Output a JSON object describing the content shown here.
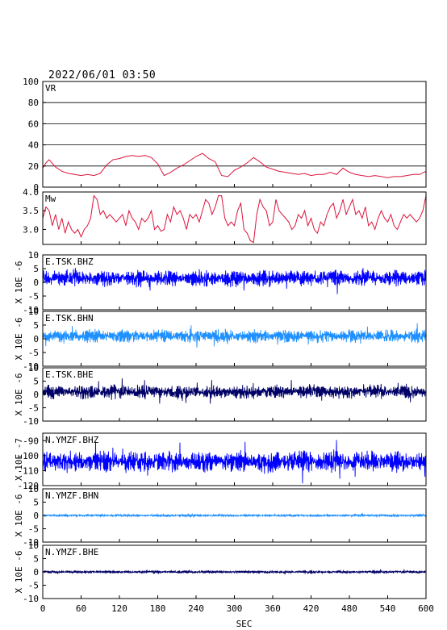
{
  "title": "2022/06/01 03:50",
  "chart_data": {
    "type": "line",
    "xlabel": "SEC",
    "xlim": [
      0,
      600
    ],
    "xticks": [
      0,
      60,
      120,
      180,
      240,
      300,
      360,
      420,
      480,
      540,
      600
    ],
    "panels": [
      {
        "id": "vr",
        "label": "VR",
        "color": "#dc143c",
        "ylim": [
          0,
          100
        ],
        "yticks": [
          "0",
          "20",
          "40",
          "60",
          "80",
          "100"
        ],
        "ytick_values": [
          0,
          20,
          40,
          60,
          80,
          100
        ],
        "grid": true,
        "ylabel": "",
        "x": [
          0,
          5,
          10,
          20,
          30,
          40,
          50,
          60,
          70,
          80,
          90,
          100,
          110,
          120,
          130,
          140,
          150,
          160,
          170,
          180,
          190,
          200,
          210,
          220,
          230,
          240,
          250,
          260,
          270,
          280,
          290,
          300,
          310,
          320,
          330,
          340,
          350,
          360,
          370,
          380,
          390,
          400,
          410,
          420,
          430,
          440,
          450,
          460,
          470,
          480,
          490,
          500,
          510,
          520,
          530,
          540,
          550,
          560,
          570,
          580,
          590,
          600
        ],
        "values": [
          18,
          23,
          26,
          19,
          15,
          13,
          12,
          11,
          12,
          11,
          13,
          21,
          26,
          27,
          29,
          30,
          29,
          30,
          28,
          22,
          11,
          14,
          18,
          21,
          25,
          29,
          32,
          27,
          24,
          11,
          10,
          16,
          19,
          23,
          28,
          24,
          19,
          17,
          15,
          14,
          13,
          12,
          13,
          11,
          12,
          12,
          14,
          12,
          18,
          14,
          12,
          11,
          10,
          11,
          10,
          9,
          10,
          10,
          11,
          12,
          12,
          15
        ]
      },
      {
        "id": "mw",
        "label": "Mw",
        "color": "#dc143c",
        "ylim": [
          2.6,
          4.0
        ],
        "yticks": [
          "3.0",
          "3.5",
          "4.0"
        ],
        "ytick_values": [
          3.0,
          3.5,
          4.0
        ],
        "grid": false,
        "ylabel": "",
        "x": [
          0,
          5,
          10,
          15,
          20,
          25,
          30,
          35,
          40,
          45,
          50,
          55,
          60,
          65,
          70,
          75,
          80,
          85,
          90,
          95,
          100,
          105,
          110,
          115,
          120,
          125,
          130,
          135,
          140,
          145,
          150,
          155,
          160,
          165,
          170,
          175,
          180,
          185,
          190,
          195,
          200,
          205,
          210,
          215,
          220,
          225,
          230,
          235,
          240,
          245,
          250,
          255,
          260,
          265,
          270,
          275,
          280,
          285,
          290,
          295,
          300,
          305,
          310,
          315,
          320,
          325,
          330,
          335,
          340,
          345,
          350,
          355,
          360,
          365,
          370,
          375,
          380,
          385,
          390,
          395,
          400,
          405,
          410,
          415,
          420,
          425,
          430,
          435,
          440,
          445,
          450,
          455,
          460,
          465,
          470,
          475,
          480,
          485,
          490,
          495,
          500,
          505,
          510,
          515,
          520,
          525,
          530,
          535,
          540,
          545,
          550,
          555,
          560,
          565,
          570,
          575,
          580,
          585,
          590,
          595,
          600
        ],
        "values": [
          3.3,
          3.6,
          3.5,
          3.1,
          3.4,
          3.0,
          3.3,
          2.9,
          3.2,
          3.0,
          2.9,
          3.0,
          2.8,
          3.0,
          3.1,
          3.3,
          3.9,
          3.8,
          3.4,
          3.5,
          3.3,
          3.4,
          3.3,
          3.2,
          3.3,
          3.4,
          3.1,
          3.5,
          3.3,
          3.2,
          3.0,
          3.3,
          3.2,
          3.3,
          3.5,
          3.0,
          3.1,
          2.95,
          3.0,
          3.4,
          3.2,
          3.6,
          3.4,
          3.5,
          3.3,
          3.0,
          3.4,
          3.3,
          3.4,
          3.2,
          3.5,
          3.8,
          3.7,
          3.4,
          3.6,
          3.9,
          3.9,
          3.3,
          3.1,
          3.2,
          3.1,
          3.5,
          3.7,
          3.0,
          2.9,
          2.7,
          2.65,
          3.4,
          3.8,
          3.6,
          3.5,
          3.1,
          3.2,
          3.8,
          3.5,
          3.4,
          3.3,
          3.2,
          3.0,
          3.1,
          3.4,
          3.3,
          3.5,
          3.1,
          3.3,
          3.0,
          2.9,
          3.2,
          3.1,
          3.4,
          3.6,
          3.7,
          3.3,
          3.5,
          3.8,
          3.4,
          3.6,
          3.8,
          3.4,
          3.5,
          3.3,
          3.6,
          3.1,
          3.2,
          3.0,
          3.3,
          3.5,
          3.3,
          3.2,
          3.4,
          3.1,
          3.0,
          3.2,
          3.4,
          3.3,
          3.4,
          3.3,
          3.2,
          3.3,
          3.5,
          3.9
        ]
      },
      {
        "id": "tsk-bhz",
        "label": "E.TSK.BHZ",
        "color": "#0000ff",
        "ylim": [
          -10,
          10
        ],
        "yticks": [
          "-10",
          "-5",
          "0",
          "5",
          "10"
        ],
        "ytick_values": [
          -10,
          -5,
          0,
          5,
          10
        ],
        "grid": false,
        "ylabel": "X 10E -6",
        "baseline": 1.5,
        "amplitude": 2.5
      },
      {
        "id": "tsk-bhn",
        "label": "E.TSK.BHN",
        "color": "#1e90ff",
        "ylim": [
          -10,
          10
        ],
        "yticks": [
          "-10",
          "-5",
          "0",
          "5",
          "10"
        ],
        "ytick_values": [
          -10,
          -5,
          0,
          5,
          10
        ],
        "grid": false,
        "ylabel": "X 10E -6",
        "baseline": 1.0,
        "amplitude": 2.0
      },
      {
        "id": "tsk-bhe",
        "label": "E.TSK.BHE",
        "color": "#000066",
        "ylim": [
          -10,
          10
        ],
        "yticks": [
          "-10",
          "-5",
          "0",
          "5",
          "10"
        ],
        "ytick_values": [
          -10,
          -5,
          0,
          5,
          10
        ],
        "grid": false,
        "ylabel": "X 10E -6",
        "baseline": 1.0,
        "amplitude": 2.2
      },
      {
        "id": "ymzf-bhz",
        "label": "N.YMZF.BHZ",
        "color": "#0000ff",
        "ylim": [
          -120,
          -85
        ],
        "yticks": [
          "-120",
          "-110",
          "-100",
          "-90"
        ],
        "ytick_values": [
          -120,
          -110,
          -100,
          -90
        ],
        "grid": false,
        "ylabel": "X 10E -7",
        "baseline": -104,
        "amplitude": 6
      },
      {
        "id": "ymzf-bhn",
        "label": "N.YMZF.BHN",
        "color": "#1e90ff",
        "ylim": [
          -10,
          10
        ],
        "yticks": [
          "-10",
          "-5",
          "0",
          "5",
          "10"
        ],
        "ytick_values": [
          -10,
          -5,
          0,
          5,
          10
        ],
        "grid": false,
        "ylabel": "X 10E -6",
        "baseline": 0.0,
        "amplitude": 0.35
      },
      {
        "id": "ymzf-bhe",
        "label": "N.YMZF.BHE",
        "color": "#000066",
        "ylim": [
          -10,
          10
        ],
        "yticks": [
          "-10",
          "-5",
          "0",
          "5",
          "10"
        ],
        "ytick_values": [
          -10,
          -5,
          0,
          5,
          10
        ],
        "grid": false,
        "ylabel": "X 10E -6",
        "baseline": 0.0,
        "amplitude": 0.4
      }
    ]
  }
}
